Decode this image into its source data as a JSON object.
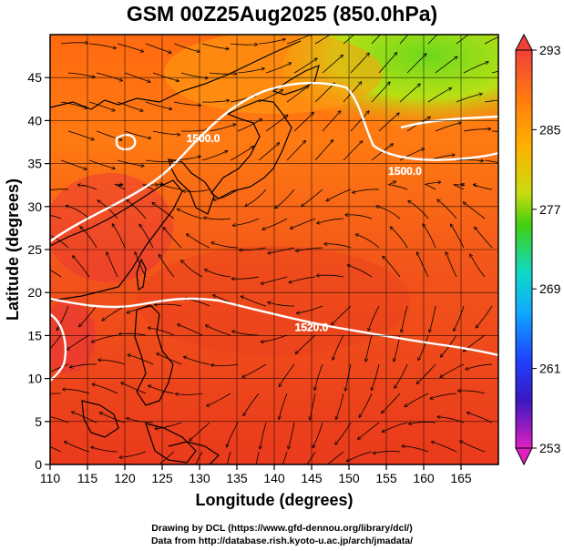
{
  "title": "GSM 00Z25Aug2025 (850.0hPa)",
  "x_axis": {
    "label": "Longitude (degrees)",
    "ticks": [
      "110",
      "115",
      "120",
      "125",
      "130",
      "135",
      "140",
      "145",
      "150",
      "155",
      "160",
      "165"
    ],
    "tick_values": [
      110,
      115,
      120,
      125,
      130,
      135,
      140,
      145,
      150,
      155,
      160,
      165
    ],
    "range": [
      110,
      170
    ]
  },
  "y_axis": {
    "label": "Latitude (degrees)",
    "ticks": [
      "0",
      "5",
      "10",
      "15",
      "20",
      "25",
      "30",
      "35",
      "40",
      "45"
    ],
    "tick_values": [
      0,
      5,
      10,
      15,
      20,
      25,
      30,
      35,
      40,
      45
    ],
    "range": [
      0,
      50
    ]
  },
  "colorbar": {
    "labels": [
      "293",
      "285",
      "277",
      "269",
      "261",
      "253"
    ],
    "values": [
      293,
      285,
      277,
      269,
      261,
      253
    ],
    "min": 253,
    "max": 293
  },
  "contours": [
    {
      "label": "1500.0",
      "label_lon": 130.5,
      "label_lat": 37.5
    },
    {
      "label": "1500.0",
      "label_lon": 157.5,
      "label_lat": 33.7
    },
    {
      "label": "1520.0",
      "label_lon": 145.0,
      "label_lat": 15.5
    }
  ],
  "credits": {
    "line1": "Drawing by DCL (https://www.gfd-dennou.org/library/dcl/)",
    "line2": "Data from http://database.rish.kyoto-u.ac.jp/arch/jmadata/"
  },
  "colors": {
    "warm": "#ea3a1c",
    "mid": "#ff7a00",
    "cool": "#5ed21e",
    "contour": "#ffffff",
    "coast": "#000000"
  }
}
